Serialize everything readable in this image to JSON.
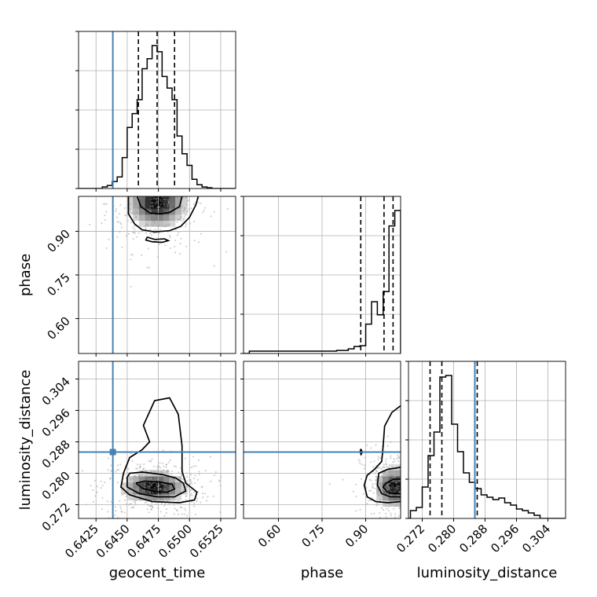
{
  "chart_data": {
    "type": "corner",
    "parameters": [
      "geocent_time",
      "phase",
      "luminosity_distance"
    ],
    "truths": {
      "geocent_time": 0.64385,
      "phase": null,
      "luminosity_distance": 0.2854
    },
    "truth_color": "#4682b4",
    "grid": true,
    "axes": {
      "geocent_time": {
        "range": [
          0.6411,
          0.6537
        ],
        "ticks": [
          0.6425,
          0.645,
          0.6475,
          0.65,
          0.6525
        ],
        "tick_labels": [
          "0.6425",
          "0.6450",
          "0.6475",
          "0.6500",
          "0.6525"
        ]
      },
      "phase": {
        "range": [
          0.48,
          1.02
        ],
        "ticks": [
          0.6,
          0.75,
          0.9
        ],
        "tick_labels": [
          "0.60",
          "0.75",
          "0.90"
        ]
      },
      "luminosity_distance": {
        "range": [
          0.2685,
          0.3085
        ],
        "ticks": [
          0.272,
          0.28,
          0.288,
          0.296,
          0.304
        ],
        "tick_labels": [
          "0.272",
          "0.280",
          "0.288",
          "0.296",
          "0.304"
        ]
      }
    },
    "histograms": [
      {
        "param": "geocent_time",
        "bins": [
          0.643,
          0.6434,
          0.6438,
          0.6442,
          0.6446,
          0.645,
          0.6454,
          0.6458,
          0.6462,
          0.6466,
          0.647,
          0.6474,
          0.6478,
          0.6482,
          0.6486,
          0.649,
          0.6494,
          0.6498,
          0.6502,
          0.6506,
          0.651,
          0.6514
        ],
        "counts": [
          2,
          4,
          9,
          15,
          40,
          79,
          97,
          115,
          155,
          168,
          185,
          177,
          145,
          130,
          115,
          68,
          45,
          30,
          12,
          5,
          2,
          1
        ],
        "quantiles": [
          0.6459,
          0.6474,
          0.6488
        ]
      },
      {
        "param": "phase",
        "bins": [
          0.5,
          0.52,
          0.54,
          0.56,
          0.58,
          0.6,
          0.62,
          0.64,
          0.66,
          0.68,
          0.7,
          0.72,
          0.74,
          0.76,
          0.78,
          0.8,
          0.82,
          0.84,
          0.86,
          0.88,
          0.9,
          0.92,
          0.94,
          0.96,
          0.98,
          1.0
        ],
        "counts": [
          3,
          3,
          3,
          3,
          3,
          3,
          3,
          3,
          3,
          3,
          3,
          3,
          3,
          3,
          3,
          4,
          4,
          6,
          9,
          10,
          38,
          67,
          50,
          80,
          165,
          185
        ],
        "quantiles": [
          0.883,
          0.963,
          0.994
        ]
      },
      {
        "param": "luminosity_distance",
        "bins": [
          0.269,
          0.2705,
          0.272,
          0.2735,
          0.275,
          0.2765,
          0.278,
          0.2795,
          0.281,
          0.2825,
          0.284,
          0.2855,
          0.287,
          0.2885,
          0.29,
          0.2915,
          0.293,
          0.2945,
          0.296,
          0.2975,
          0.299,
          0.3005
        ],
        "counts": [
          10,
          14,
          40,
          80,
          110,
          180,
          182,
          120,
          85,
          58,
          46,
          38,
          30,
          27,
          24,
          26,
          20,
          17,
          12,
          10,
          7,
          4
        ],
        "quantiles": [
          0.274,
          0.277,
          0.286
        ]
      }
    ],
    "contours_2d": [
      {
        "x": "geocent_time",
        "y": "phase",
        "levels": [
          [
            [
              0.6458,
              1.02
            ],
            [
              0.6461,
              0.985
            ],
            [
              0.6468,
              0.963
            ],
            [
              0.6476,
              0.96
            ],
            [
              0.6484,
              0.965
            ],
            [
              0.6492,
              0.985
            ],
            [
              0.6494,
              1.02
            ]
          ],
          [
            [
              0.6451,
              1.02
            ],
            [
              0.6451,
              0.96
            ],
            [
              0.6456,
              0.925
            ],
            [
              0.6462,
              0.905
            ],
            [
              0.6472,
              0.898
            ],
            [
              0.6484,
              0.902
            ],
            [
              0.6493,
              0.917
            ],
            [
              0.65,
              0.948
            ],
            [
              0.6505,
              0.99
            ],
            [
              0.6507,
              1.02
            ]
          ],
          [
            [
              0.6466,
              0.88
            ],
            [
              0.6472,
              0.872
            ],
            [
              0.648,
              0.874
            ],
            [
              0.6483,
              0.868
            ],
            [
              0.6478,
              0.862
            ],
            [
              0.647,
              0.864
            ],
            [
              0.6465,
              0.87
            ],
            [
              0.6466,
              0.88
            ]
          ]
        ]
      },
      {
        "x": "geocent_time",
        "y": "luminosity_distance",
        "levels": [
          [
            [
              0.6457,
              0.2775
            ],
            [
              0.6462,
              0.2762
            ],
            [
              0.6472,
              0.2753
            ],
            [
              0.6482,
              0.2752
            ],
            [
              0.6488,
              0.276
            ],
            [
              0.6486,
              0.2772
            ],
            [
              0.6476,
              0.2778
            ],
            [
              0.6464,
              0.278
            ],
            [
              0.6457,
              0.2775
            ]
          ],
          [
            [
              0.645,
              0.279
            ],
            [
              0.645,
              0.2765
            ],
            [
              0.646,
              0.2748
            ],
            [
              0.6474,
              0.274
            ],
            [
              0.6488,
              0.274
            ],
            [
              0.6497,
              0.2755
            ],
            [
              0.6495,
              0.2775
            ],
            [
              0.6489,
              0.2788
            ],
            [
              0.6478,
              0.2797
            ],
            [
              0.6462,
              0.2803
            ],
            [
              0.6452,
              0.28
            ],
            [
              0.645,
              0.279
            ]
          ],
          [
            [
              0.6447,
              0.28
            ],
            [
              0.6445,
              0.2765
            ],
            [
              0.6452,
              0.2745
            ],
            [
              0.647,
              0.2728
            ],
            [
              0.6492,
              0.2725
            ],
            [
              0.6504,
              0.2732
            ],
            [
              0.6506,
              0.2752
            ],
            [
              0.6497,
              0.2775
            ],
            [
              0.6494,
              0.2805
            ],
            [
              0.6494,
              0.287
            ],
            [
              0.6491,
              0.295
            ],
            [
              0.6484,
              0.2992
            ],
            [
              0.6472,
              0.2985
            ],
            [
              0.6463,
              0.2922
            ],
            [
              0.6468,
              0.288
            ],
            [
              0.6462,
              0.286
            ],
            [
              0.6452,
              0.284
            ],
            [
              0.6447,
              0.28
            ]
          ]
        ]
      },
      {
        "x": "phase",
        "y": "luminosity_distance",
        "levels": [
          [
            [
              1.02,
              0.2785
            ],
            [
              0.995,
              0.2785
            ],
            [
              0.97,
              0.2775
            ],
            [
              0.96,
              0.2765
            ],
            [
              0.975,
              0.2752
            ],
            [
              1.0,
              0.2748
            ],
            [
              1.02,
              0.2748
            ]
          ],
          [
            [
              1.02,
              0.2815
            ],
            [
              0.975,
              0.281
            ],
            [
              0.945,
              0.28
            ],
            [
              0.94,
              0.277
            ],
            [
              0.955,
              0.2748
            ],
            [
              0.985,
              0.274
            ],
            [
              1.02,
              0.274
            ]
          ],
          [
            [
              1.02,
              0.2972
            ],
            [
              0.99,
              0.2955
            ],
            [
              0.965,
              0.292
            ],
            [
              0.96,
              0.287
            ],
            [
              0.955,
              0.283
            ],
            [
              0.93,
              0.281
            ],
            [
              0.905,
              0.2795
            ],
            [
              0.895,
              0.277
            ],
            [
              0.905,
              0.274
            ],
            [
              0.935,
              0.2728
            ],
            [
              0.975,
              0.2725
            ],
            [
              1.02,
              0.2728
            ]
          ],
          [
            [
              0.883,
              0.2862
            ],
            [
              0.886,
              0.2858
            ],
            [
              0.887,
              0.2852
            ],
            [
              0.884,
              0.2848
            ],
            [
              0.881,
              0.2855
            ],
            [
              0.883,
              0.2862
            ]
          ]
        ]
      }
    ],
    "density_peaks": [
      {
        "x": "geocent_time",
        "y": "phase",
        "center": [
          0.6474,
          1.0
        ],
        "spread": [
          0.0012,
          0.045
        ],
        "dark": 1
      },
      {
        "x": "geocent_time",
        "y": "luminosity_distance",
        "center": [
          0.6472,
          0.2765
        ],
        "spread": [
          0.0013,
          0.002
        ],
        "dark": 1
      },
      {
        "x": "phase",
        "y": "luminosity_distance",
        "center": [
          1.0,
          0.2765
        ],
        "spread": [
          0.035,
          0.0025
        ],
        "dark": 1
      }
    ],
    "xlabels": [
      "geocent_time",
      "phase",
      "luminosity_distance"
    ],
    "ylabels": [
      "phase",
      "luminosity_distance"
    ]
  }
}
